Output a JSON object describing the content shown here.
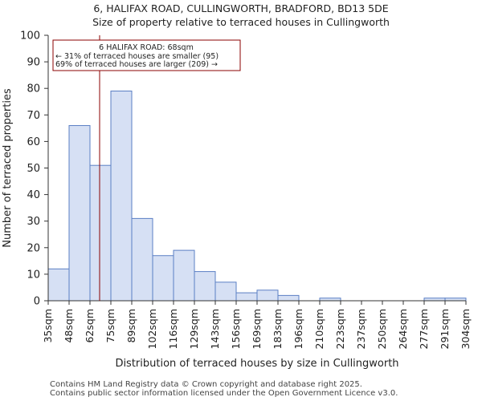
{
  "title_line1": "6, HALIFAX ROAD, CULLINGWORTH, BRADFORD, BD13 5DE",
  "title_line2": "Size of property relative to terraced houses in Cullingworth",
  "footer_line1": "Contains HM Land Registry data © Crown copyright and database right 2025.",
  "footer_line2": "Contains public sector information licensed under the Open Government Licence v3.0.",
  "colors": {
    "bar_fill": "#d6e0f4",
    "bar_stroke": "#5b7fc4",
    "marker": "#8b0000",
    "axis": "#333333"
  },
  "chart_data": {
    "type": "bar",
    "title": "Size of property relative to terraced houses in Cullingworth",
    "xlabel": "Distribution of terraced houses by size in Cullingworth",
    "ylabel": "Number of terraced properties",
    "ylim": [
      0,
      100
    ],
    "yticks": [
      0,
      10,
      20,
      30,
      40,
      50,
      60,
      70,
      80,
      90,
      100
    ],
    "bin_edges": [
      35,
      48,
      62,
      75,
      89,
      102,
      116,
      129,
      143,
      156,
      169,
      183,
      196,
      210,
      223,
      237,
      250,
      264,
      277,
      291,
      304
    ],
    "tick_labels": [
      "35sqm",
      "48sqm",
      "62sqm",
      "75sqm",
      "89sqm",
      "102sqm",
      "116sqm",
      "129sqm",
      "143sqm",
      "156sqm",
      "169sqm",
      "183sqm",
      "196sqm",
      "210sqm",
      "223sqm",
      "237sqm",
      "250sqm",
      "264sqm",
      "277sqm",
      "291sqm",
      "304sqm"
    ],
    "values": [
      12,
      66,
      51,
      79,
      31,
      17,
      19,
      11,
      7,
      3,
      4,
      2,
      0,
      1,
      0,
      0,
      0,
      0,
      1,
      1
    ],
    "marker_value": 68,
    "annotation": {
      "line1": "6 HALIFAX ROAD: 68sqm",
      "line2": "← 31% of terraced houses are smaller (95)",
      "line3": "69% of terraced houses are larger (209) →"
    }
  }
}
